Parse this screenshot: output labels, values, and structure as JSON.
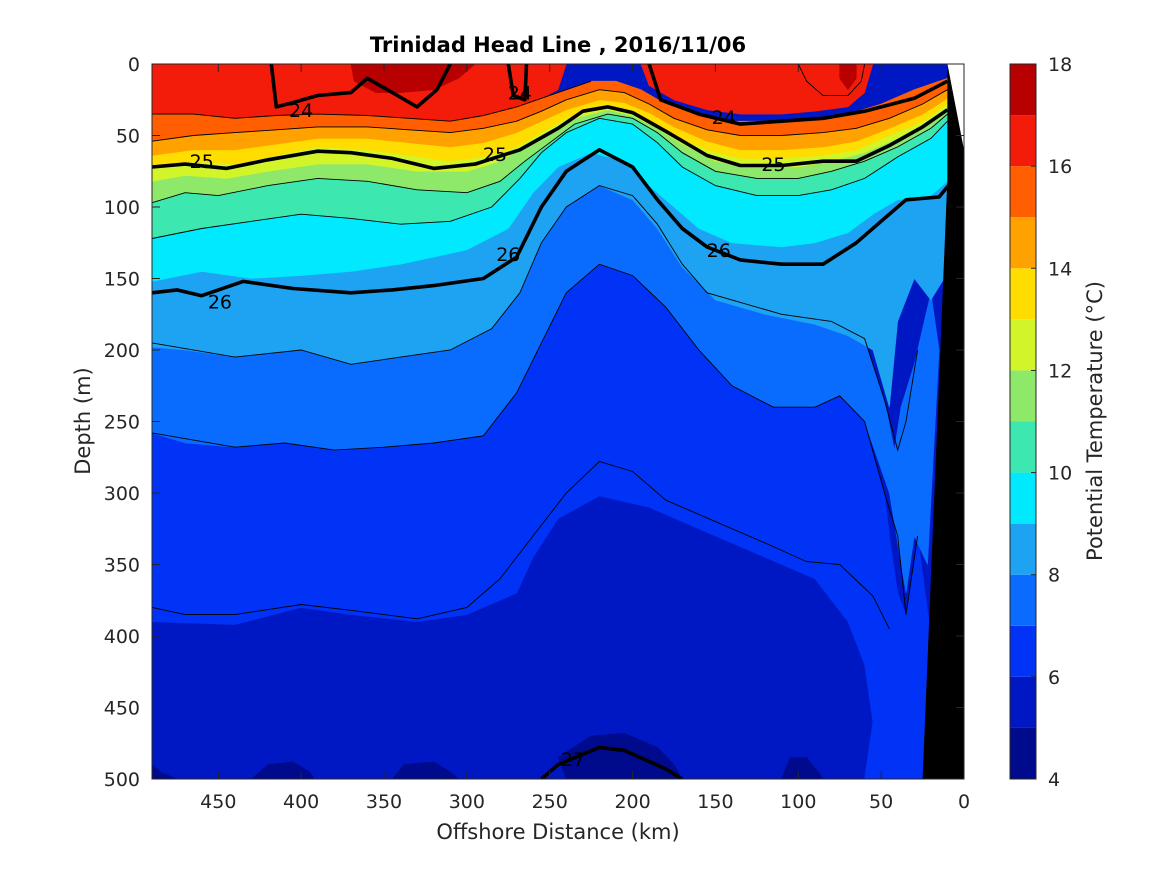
{
  "chart_data": {
    "type": "contour",
    "title": "Trinidad Head Line , 2016/11/06",
    "xlabel": "Offshore Distance (km)",
    "ylabel": "Depth (m)",
    "xlim": [
      490,
      0
    ],
    "ylim": [
      0,
      500
    ],
    "x_reversed": true,
    "y_reversed": true,
    "xticks": [
      450,
      400,
      350,
      300,
      250,
      200,
      150,
      100,
      50,
      0
    ],
    "yticks": [
      0,
      50,
      100,
      150,
      200,
      250,
      300,
      350,
      400,
      450,
      500
    ],
    "colorbar": {
      "label": "Potential Temperature (°C)",
      "range": [
        4,
        18
      ],
      "ticks": [
        4,
        6,
        8,
        10,
        12,
        14,
        16,
        18
      ],
      "levels": [
        {
          "from": 4,
          "to": 5,
          "color": "#000a8c"
        },
        {
          "from": 5,
          "to": 6,
          "color": "#0018c4"
        },
        {
          "from": 6,
          "to": 7,
          "color": "#0033f5"
        },
        {
          "from": 7,
          "to": 8,
          "color": "#0a6cff"
        },
        {
          "from": 8,
          "to": 9,
          "color": "#1ea2f2"
        },
        {
          "from": 9,
          "to": 10,
          "color": "#00e9ff"
        },
        {
          "from": 10,
          "to": 11,
          "color": "#3de8b0"
        },
        {
          "from": 11,
          "to": 12,
          "color": "#8ee86a"
        },
        {
          "from": 12,
          "to": 13,
          "color": "#d2f52a"
        },
        {
          "from": 13,
          "to": 14,
          "color": "#ffdd00"
        },
        {
          "from": 14,
          "to": 15,
          "color": "#ffa200"
        },
        {
          "from": 15,
          "to": 16,
          "color": "#ff5f00"
        },
        {
          "from": 16,
          "to": 17,
          "color": "#f31c0a"
        },
        {
          "from": 17,
          "to": 18,
          "color": "#b80000"
        }
      ]
    },
    "density_contours": [
      {
        "level": 24,
        "points": [
          [
            418,
            0
          ],
          [
            415,
            30
          ],
          [
            405,
            27
          ],
          [
            390,
            22
          ],
          [
            370,
            20
          ],
          [
            360,
            10
          ],
          [
            345,
            20
          ],
          [
            330,
            30
          ],
          [
            318,
            18
          ],
          [
            310,
            0
          ]
        ]
      },
      {
        "level": 24,
        "points": [
          [
            275,
            0
          ],
          [
            272,
            22
          ],
          [
            265,
            25
          ],
          [
            264,
            0
          ]
        ]
      },
      {
        "level": 24,
        "points": [
          [
            190,
            0
          ],
          [
            183,
            25
          ],
          [
            160,
            35
          ],
          [
            135,
            42
          ],
          [
            110,
            40
          ],
          [
            85,
            38
          ],
          [
            60,
            33
          ],
          [
            30,
            24
          ],
          [
            10,
            12
          ]
        ]
      },
      {
        "level": 25,
        "points": [
          [
            490,
            72
          ],
          [
            470,
            70
          ],
          [
            445,
            73
          ],
          [
            420,
            67
          ],
          [
            390,
            61
          ],
          [
            370,
            62
          ],
          [
            345,
            66
          ],
          [
            320,
            73
          ],
          [
            295,
            70
          ],
          [
            268,
            60
          ],
          [
            245,
            45
          ],
          [
            230,
            33
          ],
          [
            215,
            30
          ],
          [
            200,
            34
          ],
          [
            180,
            47
          ],
          [
            155,
            64
          ],
          [
            135,
            71
          ],
          [
            110,
            71
          ],
          [
            85,
            68
          ],
          [
            65,
            68
          ],
          [
            45,
            57
          ],
          [
            25,
            44
          ],
          [
            10,
            32
          ]
        ]
      },
      {
        "level": 26,
        "points": [
          [
            490,
            160
          ],
          [
            475,
            158
          ],
          [
            460,
            162
          ],
          [
            435,
            152
          ],
          [
            405,
            157
          ],
          [
            370,
            160
          ],
          [
            345,
            158
          ],
          [
            320,
            155
          ],
          [
            290,
            150
          ],
          [
            270,
            135
          ],
          [
            255,
            100
          ],
          [
            240,
            75
          ],
          [
            220,
            60
          ],
          [
            200,
            72
          ],
          [
            185,
            95
          ],
          [
            170,
            115
          ],
          [
            155,
            128
          ],
          [
            135,
            137
          ],
          [
            110,
            140
          ],
          [
            85,
            140
          ],
          [
            65,
            125
          ],
          [
            50,
            110
          ],
          [
            35,
            95
          ],
          [
            15,
            93
          ],
          [
            8,
            83
          ]
        ]
      },
      {
        "level": 27,
        "points": [
          [
            255,
            500
          ],
          [
            245,
            490
          ],
          [
            220,
            478
          ],
          [
            205,
            480
          ],
          [
            180,
            493
          ],
          [
            170,
            500
          ]
        ]
      }
    ],
    "contour_labels": [
      {
        "text": "24",
        "x": 400,
        "y": 32
      },
      {
        "text": "24",
        "x": 268,
        "y": 20
      },
      {
        "text": "24",
        "x": 145,
        "y": 37
      },
      {
        "text": "25",
        "x": 460,
        "y": 68
      },
      {
        "text": "25",
        "x": 283,
        "y": 63
      },
      {
        "text": "25",
        "x": 115,
        "y": 70
      },
      {
        "text": "26",
        "x": 449,
        "y": 166
      },
      {
        "text": "26",
        "x": 275,
        "y": 133
      },
      {
        "text": "26",
        "x": 148,
        "y": 130
      },
      {
        "text": "27",
        "x": 236,
        "y": 486
      }
    ],
    "bottom_topography": [
      [
        10,
        0
      ],
      [
        0,
        0
      ],
      [
        0,
        500
      ],
      [
        25,
        500
      ],
      [
        10,
        80
      ]
    ]
  }
}
